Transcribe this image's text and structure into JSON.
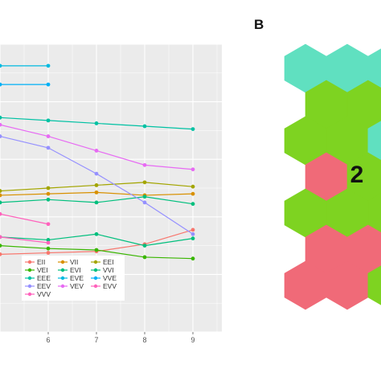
{
  "panel_b_label": "B",
  "chart_data": [
    {
      "type": "line",
      "title": "",
      "xlabel": "",
      "ylabel": "",
      "x_ticks": [
        "6",
        "7",
        "8",
        "9"
      ],
      "xlim": [
        5,
        9.6
      ],
      "ylim": [
        0,
        1
      ],
      "grid": true,
      "legend": "bottom-left",
      "series": [
        {
          "name": "EII",
          "color": "#F8766D",
          "x": [
            5,
            6,
            7,
            8,
            9
          ],
          "y": [
            0.27,
            0.275,
            0.28,
            0.305,
            0.355
          ]
        },
        {
          "name": "VII",
          "color": "#D89000",
          "x": [
            5,
            6,
            7,
            8,
            9
          ],
          "y": [
            0.475,
            0.48,
            0.485,
            0.475,
            0.48
          ]
        },
        {
          "name": "EEI",
          "color": "#A3A500",
          "x": [
            5,
            6,
            7,
            8,
            9
          ],
          "y": [
            0.49,
            0.5,
            0.51,
            0.52,
            0.505
          ]
        },
        {
          "name": "VEI",
          "color": "#39B600",
          "x": [
            5,
            6,
            7,
            8,
            9
          ],
          "y": [
            0.3,
            0.29,
            0.285,
            0.26,
            0.255
          ]
        },
        {
          "name": "EVI",
          "color": "#00BF7D",
          "x": [
            5,
            6,
            7,
            8,
            9
          ],
          "y": [
            0.33,
            0.32,
            0.34,
            0.3,
            0.325
          ]
        },
        {
          "name": "VVI",
          "color": "#00BF7D",
          "x": [
            5,
            6,
            7,
            8,
            9
          ],
          "y": [
            0.45,
            0.46,
            0.45,
            0.47,
            0.445
          ]
        },
        {
          "name": "EEE",
          "color": "#00C1A3",
          "x": [
            5,
            6,
            7,
            8,
            9
          ],
          "y": [
            0.745,
            0.735,
            0.725,
            0.715,
            0.705
          ]
        },
        {
          "name": "EVE",
          "color": "#00BAE0",
          "x": [
            5,
            6
          ],
          "y": [
            0.925,
            0.925
          ]
        },
        {
          "name": "VVE",
          "color": "#00B0F6",
          "x": [
            5,
            6
          ],
          "y": [
            0.86,
            0.86
          ]
        },
        {
          "name": "EEV",
          "color": "#9590FF",
          "x": [
            5,
            6,
            7,
            8,
            9
          ],
          "y": [
            0.68,
            0.64,
            0.55,
            0.45,
            0.34
          ]
        },
        {
          "name": "VEV",
          "color": "#E76BF3",
          "x": [
            5,
            6,
            7,
            8,
            9
          ],
          "y": [
            0.72,
            0.68,
            0.63,
            0.58,
            0.565
          ]
        },
        {
          "name": "EVV",
          "color": "#FF62BC",
          "x": [
            5,
            6
          ],
          "y": [
            0.41,
            0.375
          ]
        },
        {
          "name": "VVV",
          "color": "#FF62BC",
          "x": [
            5,
            6
          ],
          "y": [
            0.33,
            0.31
          ]
        }
      ]
    },
    {
      "type": "heatmap",
      "title": "",
      "layout": "hexagonal grid, 4 columns x 7 rows (partially cropped on the right)",
      "cluster_label": "2",
      "colors": {
        "green": "#7ED321",
        "teal": "#60E0C0",
        "pink": "#F06A78"
      },
      "cells": [
        [
          "teal",
          "teal",
          "teal",
          "teal"
        ],
        [
          "green",
          "green",
          "green",
          "green"
        ],
        [
          "green",
          "green",
          "teal",
          "green"
        ],
        [
          "pink",
          "green",
          "green",
          "green"
        ],
        [
          "green",
          "green",
          "green",
          "green"
        ],
        [
          "pink",
          "pink",
          "pink",
          "pink"
        ],
        [
          "pink",
          "pink",
          "green",
          "pink"
        ]
      ]
    }
  ]
}
